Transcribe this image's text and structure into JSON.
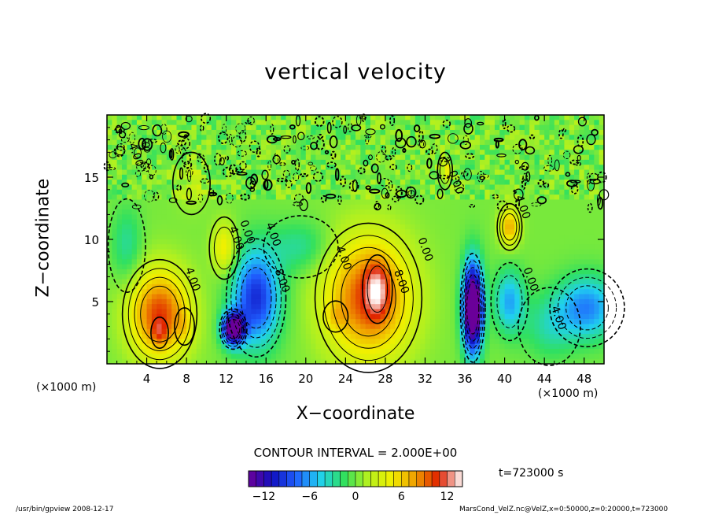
{
  "title": "vertical velocity",
  "xlabel": "X−coordinate",
  "ylabel": "Z−coordinate",
  "x_unit_left": "(×1000 m)",
  "x_unit_right": "(×1000 m)",
  "contour_interval": "CONTOUR INTERVAL = 2.000E+00",
  "time_label": "t=723000 s",
  "footer_left": "/usr/bin/gpview   2008-12-17",
  "footer_right": "MarsCond_VelZ.nc@VelZ,x=0:50000,z=0:20000,t=723000",
  "colors": {
    "colormap": [
      "#6a0099",
      "#1010c0",
      "#2060ff",
      "#20d0f0",
      "#30e060",
      "#b0f020",
      "#f0f000",
      "#f0a000",
      "#e02000",
      "#ffffff"
    ]
  },
  "chart_data": {
    "type": "heatmap",
    "title": "vertical velocity",
    "xlabel": "X−coordinate",
    "ylabel": "Z−coordinate",
    "xlim": [
      0,
      50
    ],
    "ylim": [
      0,
      20
    ],
    "xticks": [
      4,
      8,
      12,
      16,
      20,
      24,
      28,
      32,
      36,
      40,
      44,
      48
    ],
    "yticks": [
      5,
      10,
      15
    ],
    "colorbar": {
      "range": [
        -14,
        14
      ],
      "ticks": [
        -12,
        -6,
        0,
        6,
        12
      ]
    },
    "contour_labels": [
      {
        "x": 2.6,
        "y": 16.7,
        "text": "4.00"
      },
      {
        "x": 8.3,
        "y": 6.7,
        "text": "4.00"
      },
      {
        "x": 12.7,
        "y": 10.0,
        "text": "4.00"
      },
      {
        "x": 13.8,
        "y": 10.5,
        "text": "0.00"
      },
      {
        "x": 16.4,
        "y": 10.3,
        "text": "4.00"
      },
      {
        "x": 17.3,
        "y": 6.6,
        "text": "8.00"
      },
      {
        "x": 23.5,
        "y": 8.4,
        "text": "4.00"
      },
      {
        "x": 29.3,
        "y": 6.5,
        "text": "8.00"
      },
      {
        "x": 31.7,
        "y": 9.1,
        "text": "0.00"
      },
      {
        "x": 34.8,
        "y": 14.5,
        "text": "0.00"
      },
      {
        "x": 41.5,
        "y": 12.5,
        "text": "4.00"
      },
      {
        "x": 42.3,
        "y": 6.7,
        "text": "0.00"
      },
      {
        "x": 45.1,
        "y": 3.6,
        "text": "4.00"
      }
    ],
    "features": [
      {
        "x": 5.3,
        "y": 4.0,
        "value": 10,
        "sx": 3.0,
        "sy": 3.5
      },
      {
        "x": 5.3,
        "y": 2.5,
        "value": 3,
        "sx": 0.7,
        "sy": 1.0
      },
      {
        "x": 7.8,
        "y": 3.0,
        "value": 2,
        "sx": 0.8,
        "sy": 1.2
      },
      {
        "x": 11.8,
        "y": 9.3,
        "value": 5,
        "sx": 1.2,
        "sy": 2.0
      },
      {
        "x": 12.7,
        "y": 2.8,
        "value": -16,
        "sx": 1.1,
        "sy": 1.3
      },
      {
        "x": 15.0,
        "y": 5.3,
        "value": -10,
        "sx": 2.4,
        "sy": 3.8
      },
      {
        "x": 19.5,
        "y": 9.4,
        "value": -3,
        "sx": 3.0,
        "sy": 2.0
      },
      {
        "x": 26.3,
        "y": 5.3,
        "value": 10,
        "sx": 4.3,
        "sy": 4.8
      },
      {
        "x": 27.2,
        "y": 6.0,
        "value": 5,
        "sx": 1.2,
        "sy": 2.2
      },
      {
        "x": 23.0,
        "y": 3.8,
        "value": 2,
        "sx": 1.0,
        "sy": 1.0
      },
      {
        "x": 36.8,
        "y": 4.5,
        "value": -20,
        "sx": 1.0,
        "sy": 3.5
      },
      {
        "x": 40.5,
        "y": 5.0,
        "value": -6,
        "sx": 1.5,
        "sy": 2.5
      },
      {
        "x": 48.3,
        "y": 4.5,
        "value": -7,
        "sx": 3.0,
        "sy": 2.5
      },
      {
        "x": 44.5,
        "y": 3.0,
        "value": -3,
        "sx": 2.5,
        "sy": 2.5
      },
      {
        "x": 40.5,
        "y": 11.0,
        "value": 7,
        "sx": 1.0,
        "sy": 1.5
      },
      {
        "x": 34.0,
        "y": 15.5,
        "value": 4,
        "sx": 0.6,
        "sy": 1.2
      },
      {
        "x": 8.5,
        "y": 14.5,
        "value": 2,
        "sx": 1.5,
        "sy": 2.0
      },
      {
        "x": 2.0,
        "y": 9.5,
        "value": -3,
        "sx": 1.5,
        "sy": 3.0
      }
    ]
  }
}
